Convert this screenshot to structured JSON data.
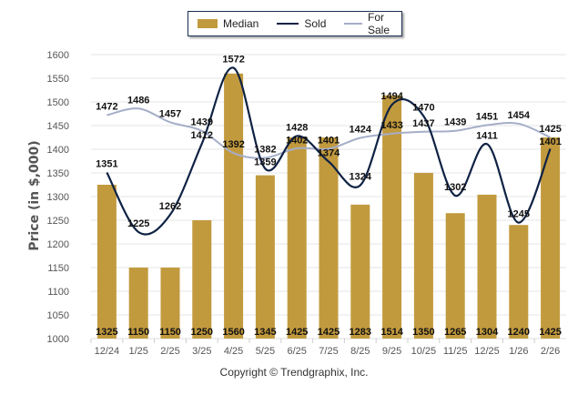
{
  "chart_data": {
    "type": "bar",
    "title": "",
    "xlabel": "",
    "ylabel": "Price (in $,000)",
    "ylim": [
      1000,
      1600
    ],
    "yticks": [
      1000,
      1050,
      1100,
      1150,
      1200,
      1250,
      1300,
      1350,
      1400,
      1450,
      1500,
      1550,
      1600
    ],
    "grid": true,
    "legend_position": "top-center",
    "categories": [
      "12/24",
      "1/25",
      "2/25",
      "3/25",
      "4/25",
      "5/25",
      "6/25",
      "7/25",
      "8/25",
      "9/25",
      "10/25",
      "11/25",
      "12/25",
      "1/26",
      "2/26"
    ],
    "series": [
      {
        "name": "Median",
        "kind": "bar",
        "color": "#c29a3e",
        "values": [
          1325,
          1150,
          1150,
          1250,
          1560,
          1345,
          1425,
          1425,
          1283,
          1514,
          1350,
          1265,
          1304,
          1240,
          1425
        ]
      },
      {
        "name": "Sold",
        "kind": "line",
        "color": "#0f2244",
        "values": [
          1351,
          1225,
          1262,
          1412,
          1572,
          1359,
          1428,
          1374,
          1324,
          1494,
          1470,
          1302,
          1411,
          1245,
          1401
        ]
      },
      {
        "name": "For Sale",
        "kind": "line",
        "color": "#a5aec8",
        "values": [
          1472,
          1486,
          1457,
          1439,
          1392,
          1382,
          1402,
          1401,
          1424,
          1433,
          1437,
          1439,
          1451,
          1454,
          1425
        ]
      }
    ]
  },
  "legend": {
    "items": [
      {
        "label": "Median",
        "color": "#c29a3e"
      },
      {
        "label": "Sold",
        "color": "#0f2244"
      },
      {
        "label": "For Sale",
        "color": "#a5aec8"
      }
    ]
  },
  "footer": {
    "copyright": "Copyright © Trendgraphix, Inc."
  }
}
